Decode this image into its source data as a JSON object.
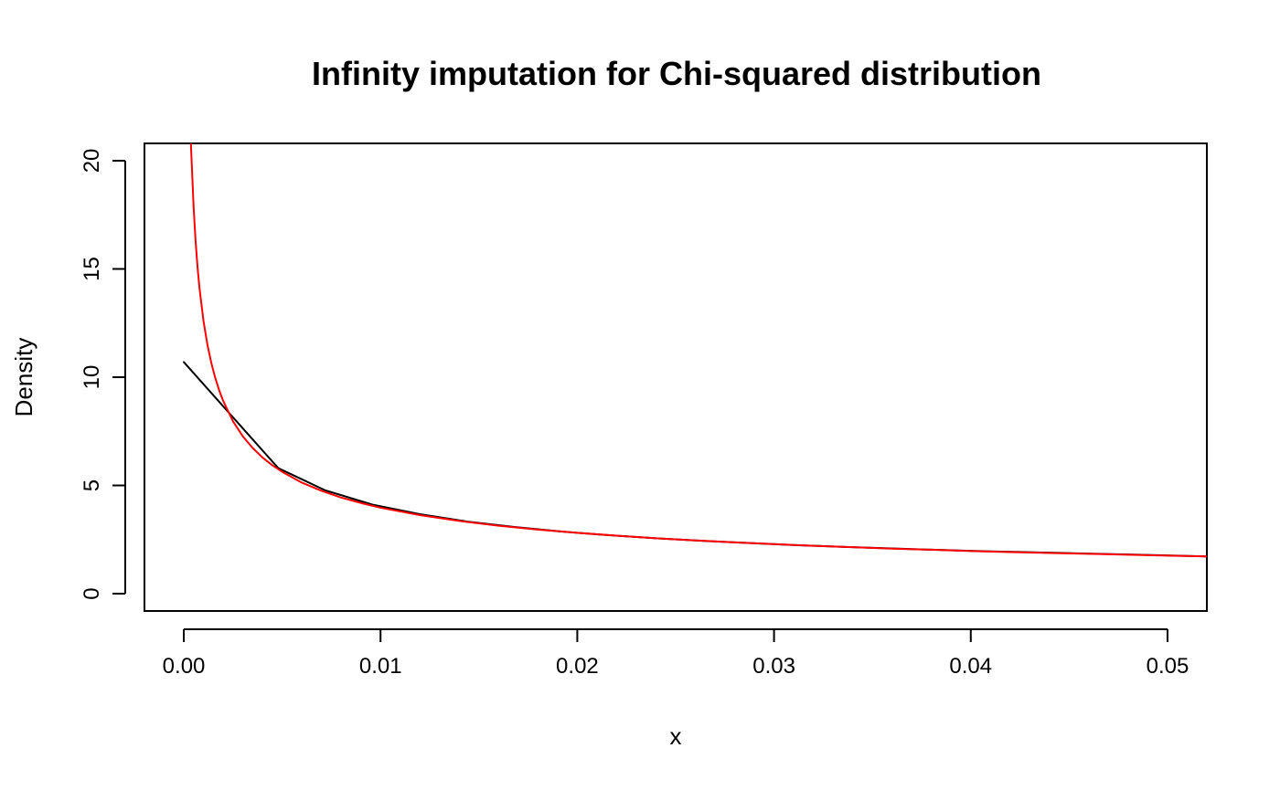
{
  "chart_data": {
    "type": "line",
    "title": "Infinity imputation for Chi-squared distribution",
    "xlabel": "x",
    "ylabel": "Density",
    "xlim": [
      -0.002,
      0.052
    ],
    "ylim": [
      -0.8,
      20.8
    ],
    "x_ticks": [
      0.0,
      0.01,
      0.02,
      0.03,
      0.04,
      0.05
    ],
    "x_tick_labels": [
      "0.00",
      "0.01",
      "0.02",
      "0.03",
      "0.04",
      "0.05"
    ],
    "y_ticks": [
      0,
      5,
      10,
      15,
      20
    ],
    "y_tick_labels": [
      "0",
      "5",
      "10",
      "15",
      "20"
    ],
    "grid": false,
    "legend": "none",
    "series": [
      {
        "color": "#000000",
        "x": [
          0.0,
          0.0048,
          0.0072,
          0.0096,
          0.012,
          0.0144,
          0.0168,
          0.0192,
          0.0216,
          0.024,
          0.0264,
          0.0288,
          0.0312,
          0.0336,
          0.036,
          0.0384,
          0.0408,
          0.0432,
          0.0456,
          0.048,
          0.0504,
          0.052
        ],
        "y": [
          10.7,
          5.8,
          4.77,
          4.11,
          3.67,
          3.33,
          3.08,
          2.87,
          2.7,
          2.56,
          2.44,
          2.34,
          2.24,
          2.16,
          2.09,
          2.02,
          1.96,
          1.91,
          1.86,
          1.81,
          1.76,
          1.72
        ]
      },
      {
        "color": "#ff0000",
        "x": [
          0.00036,
          0.0004,
          0.0005,
          0.0006,
          0.0007,
          0.0008,
          0.001,
          0.0012,
          0.0014,
          0.0016,
          0.0018,
          0.002,
          0.0025,
          0.003,
          0.0035,
          0.004,
          0.0045,
          0.005,
          0.006,
          0.007,
          0.008,
          0.009,
          0.01,
          0.012,
          0.014,
          0.016,
          0.018,
          0.02,
          0.022,
          0.024,
          0.026,
          0.028,
          0.03,
          0.032,
          0.034,
          0.036,
          0.038,
          0.04,
          0.042,
          0.044,
          0.046,
          0.048,
          0.05,
          0.052
        ],
        "y": [
          20.8,
          19.93,
          17.83,
          16.27,
          15.06,
          14.09,
          12.6,
          11.5,
          10.65,
          9.96,
          9.39,
          8.91,
          7.96,
          7.27,
          6.73,
          6.29,
          5.93,
          5.63,
          5.13,
          4.75,
          4.44,
          4.19,
          3.97,
          3.63,
          3.36,
          3.14,
          2.96,
          2.81,
          2.68,
          2.56,
          2.46,
          2.37,
          2.29,
          2.21,
          2.15,
          2.08,
          2.03,
          1.97,
          1.92,
          1.88,
          1.84,
          1.8,
          1.76,
          1.72
        ]
      }
    ]
  }
}
